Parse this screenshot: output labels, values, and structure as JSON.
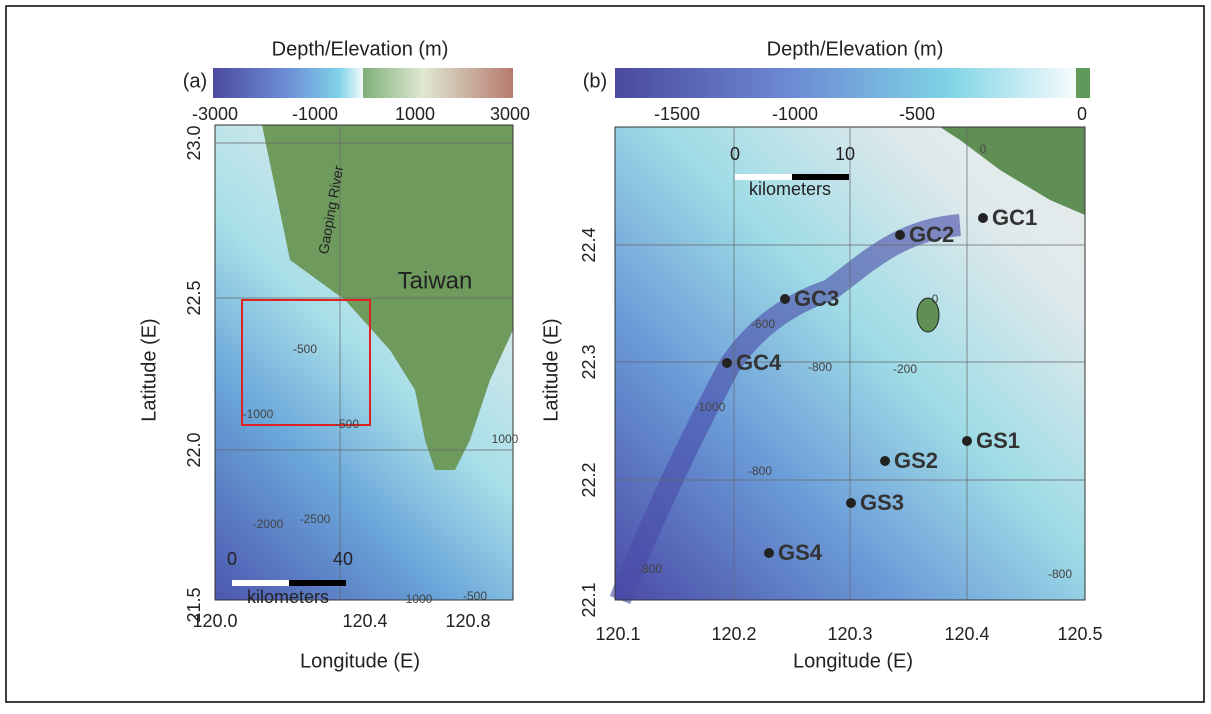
{
  "panels": [
    {
      "label": "(a)",
      "colorbar": {
        "title": "Depth/Elevation (m)",
        "ticks": [
          "-3000",
          "-1000",
          "1000",
          "3000"
        ]
      },
      "yticks": [
        "23.0",
        "22.5",
        "22.0",
        "21.5"
      ],
      "xticks": [
        "120.0",
        "120.4",
        "120.8"
      ],
      "ylabel": "Latitude (E)",
      "xlabel": "Longitude (E)",
      "place_labels": [
        "Taiwan",
        "Gaoping River"
      ],
      "contour_labels": [
        "-500",
        "-500",
        "-1000",
        "-2000",
        "-2500",
        "-1000",
        "-500",
        "1000"
      ],
      "scale_bar": {
        "ticks": [
          "0",
          "40"
        ],
        "unit": "kilometers"
      }
    },
    {
      "label": "(b)",
      "colorbar": {
        "title": "Depth/Elevation (m)",
        "ticks": [
          "-1500",
          "-1000",
          "-500",
          "0"
        ]
      },
      "yticks": [
        "22.4",
        "22.3",
        "22.2",
        "22.1"
      ],
      "xticks": [
        "120.1",
        "120.2",
        "120.3",
        "120.4",
        "120.5"
      ],
      "ylabel": "Latitude (E)",
      "xlabel": "Longitude (E)",
      "stations": [
        "GC1",
        "GC2",
        "GC3",
        "GC4",
        "GS1",
        "GS2",
        "GS3",
        "GS4"
      ],
      "contour_labels": [
        "0",
        "0",
        "-600",
        "-800",
        "-200",
        "-1000",
        "-800",
        "-800",
        "-800"
      ],
      "scale_bar": {
        "ticks": [
          "0",
          "10"
        ],
        "unit": "kilometers"
      }
    }
  ]
}
